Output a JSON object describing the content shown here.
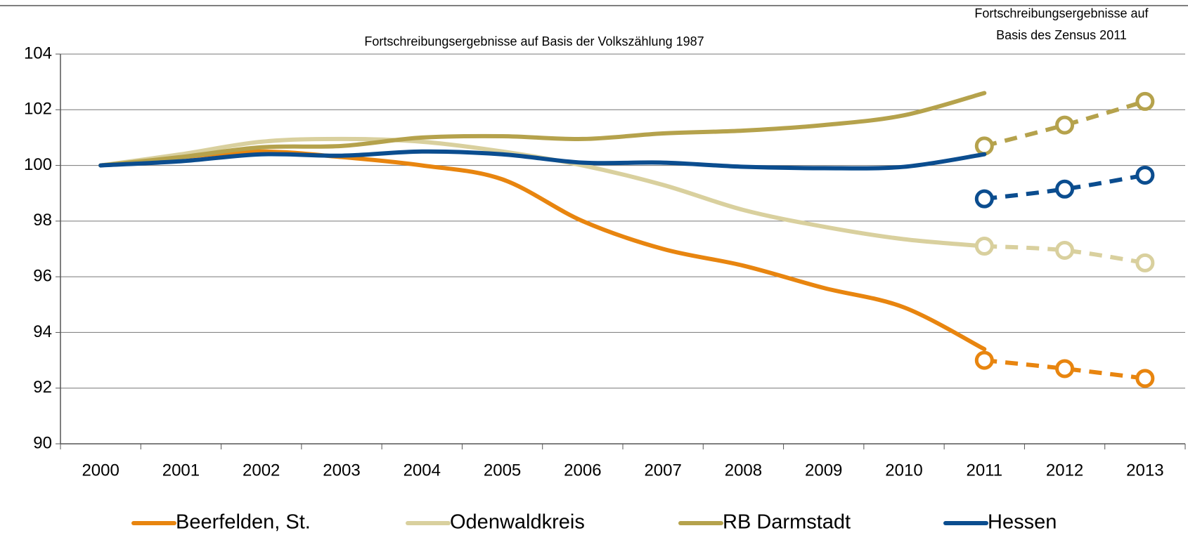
{
  "chart_data": {
    "type": "line",
    "annotations": [
      "Fortschreibungsergebnisse auf Basis der Volkszählung 1987",
      "Fortschreibungsergebnisse auf Basis des Zensus 2011"
    ],
    "categories": [
      "2000",
      "2001",
      "2002",
      "2003",
      "2004",
      "2005",
      "2006",
      "2007",
      "2008",
      "2009",
      "2010",
      "2011",
      "2012",
      "2013"
    ],
    "ylim": [
      90,
      104
    ],
    "yticks": [
      90,
      92,
      94,
      96,
      98,
      100,
      102,
      104
    ],
    "grid": true,
    "legend": "bottom",
    "series": [
      {
        "name": "Beerfelden, St.",
        "color": "#e8850f",
        "values": [
          100,
          100.3,
          100.5,
          100.3,
          100.0,
          99.5,
          98.0,
          97.0,
          96.4,
          95.6,
          94.9,
          93.4,
          null,
          null
        ],
        "census_values": [
          null,
          null,
          null,
          null,
          null,
          null,
          null,
          null,
          null,
          null,
          null,
          93.0,
          92.7,
          92.35
        ]
      },
      {
        "name": "Odenwaldkreis",
        "color": "#d9d09e",
        "values": [
          100,
          100.4,
          100.85,
          100.95,
          100.85,
          100.5,
          100.0,
          99.3,
          98.4,
          97.8,
          97.35,
          97.1,
          null,
          null
        ],
        "census_values": [
          null,
          null,
          null,
          null,
          null,
          null,
          null,
          null,
          null,
          null,
          null,
          97.1,
          96.95,
          96.5
        ]
      },
      {
        "name": "RB Darmstadt",
        "color": "#b5a24c",
        "values": [
          100,
          100.3,
          100.65,
          100.7,
          101.0,
          101.05,
          100.95,
          101.15,
          101.25,
          101.45,
          101.8,
          102.6,
          null,
          null
        ],
        "census_values": [
          null,
          null,
          null,
          null,
          null,
          null,
          null,
          null,
          null,
          null,
          null,
          100.7,
          101.45,
          102.3
        ]
      },
      {
        "name": "Hessen",
        "color": "#0b4d8f",
        "values": [
          100,
          100.15,
          100.4,
          100.35,
          100.5,
          100.4,
          100.1,
          100.1,
          99.95,
          99.9,
          99.95,
          100.4,
          null,
          null
        ],
        "census_values": [
          null,
          null,
          null,
          null,
          null,
          null,
          null,
          null,
          null,
          null,
          null,
          98.8,
          99.15,
          99.65
        ]
      }
    ]
  }
}
